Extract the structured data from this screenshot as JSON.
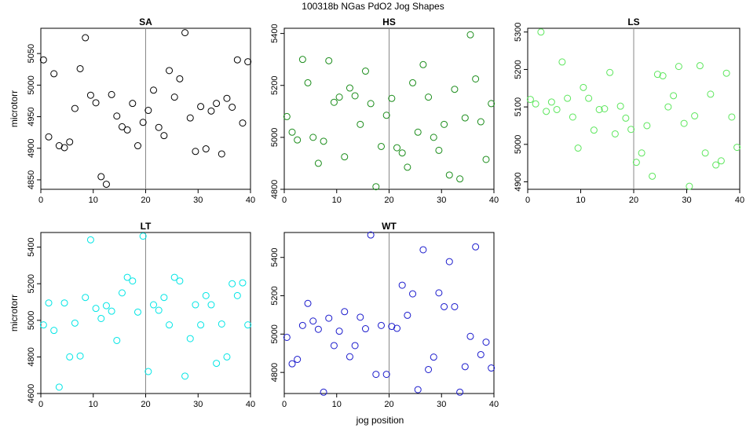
{
  "figure": {
    "title": "100318b   NGas PdO2 Jog Shapes",
    "xlabel": "jog position"
  },
  "chart_data": [
    {
      "type": "scatter",
      "title": "SA",
      "ylabel": "microtorr",
      "color": "#000000",
      "xlim": [
        0,
        40
      ],
      "ylim": [
        4835,
        5090
      ],
      "xticks": [
        0,
        10,
        20,
        30,
        40
      ],
      "yticks": [
        4850,
        4900,
        4950,
        5000,
        5050
      ],
      "vline": 20,
      "x": [
        0.5,
        1.5,
        2.5,
        3.5,
        4.5,
        5.5,
        6.5,
        7.5,
        8.5,
        9.5,
        10.5,
        11.5,
        12.5,
        13.5,
        14.5,
        15.5,
        16.5,
        17.5,
        18.5,
        19.5,
        20.5,
        21.5,
        22.5,
        23.5,
        24.5,
        25.5,
        26.5,
        27.5,
        28.5,
        29.5,
        30.5,
        31.5,
        32.5,
        33.5,
        34.5,
        35.5,
        36.5,
        37.5,
        38.5,
        39.5
      ],
      "y": [
        5040,
        4918,
        5018,
        4904,
        4901,
        4910,
        4963,
        5026,
        5075,
        4984,
        4972,
        4855,
        4843,
        4985,
        4951,
        4934,
        4929,
        4971,
        4904,
        4941,
        4960,
        4992,
        4933,
        4920,
        5023,
        4981,
        5010,
        5083,
        4948,
        4895,
        4966,
        4899,
        4959,
        4971,
        4891,
        4979,
        4965,
        5040,
        4940,
        5037
      ]
    },
    {
      "type": "scatter",
      "title": "HS",
      "ylabel": "",
      "color": "#1a8c1a",
      "xlim": [
        0,
        40
      ],
      "ylim": [
        4800,
        5420
      ],
      "xticks": [
        0,
        10,
        20,
        30,
        40
      ],
      "yticks": [
        4800,
        5000,
        5200,
        5400
      ],
      "vline": 20,
      "x": [
        0.5,
        1.5,
        2.5,
        3.5,
        4.5,
        5.5,
        6.5,
        7.5,
        8.5,
        9.5,
        10.5,
        11.5,
        12.5,
        13.5,
        14.5,
        15.5,
        16.5,
        17.5,
        18.5,
        19.5,
        20.5,
        21.5,
        22.5,
        23.5,
        24.5,
        25.5,
        26.5,
        27.5,
        28.5,
        29.5,
        30.5,
        31.5,
        32.5,
        33.5,
        34.5,
        35.5,
        36.5,
        37.5,
        38.5,
        39.5
      ],
      "y": [
        5080,
        5020,
        4990,
        5300,
        5210,
        5000,
        4900,
        4985,
        5295,
        5135,
        5155,
        4925,
        5190,
        5160,
        5050,
        5255,
        5130,
        4810,
        4965,
        5085,
        5150,
        4960,
        4940,
        4885,
        5210,
        5020,
        5280,
        5155,
        5000,
        4950,
        5050,
        4855,
        5185,
        4840,
        5075,
        5395,
        5225,
        5060,
        4915,
        5130
      ]
    },
    {
      "type": "scatter",
      "title": "LS",
      "ylabel": "",
      "color": "#5ce65c",
      "xlim": [
        0,
        40
      ],
      "ylim": [
        4880,
        5310
      ],
      "xticks": [
        0,
        10,
        20,
        30,
        40
      ],
      "yticks": [
        4900,
        5000,
        5100,
        5200,
        5300
      ],
      "vline": 20,
      "x": [
        0.5,
        1.5,
        2.5,
        3.5,
        4.5,
        5.5,
        6.5,
        7.5,
        8.5,
        9.5,
        10.5,
        11.5,
        12.5,
        13.5,
        14.5,
        15.5,
        16.5,
        17.5,
        18.5,
        19.5,
        20.5,
        21.5,
        22.5,
        23.5,
        24.5,
        25.5,
        26.5,
        27.5,
        28.5,
        29.5,
        30.5,
        31.5,
        32.5,
        33.5,
        34.5,
        35.5,
        36.5,
        37.5,
        38.5,
        39.5
      ],
      "y": [
        5120,
        5108,
        5300,
        5088,
        5113,
        5093,
        5220,
        5123,
        5073,
        4990,
        5152,
        5123,
        5038,
        5093,
        5095,
        5192,
        5028,
        5102,
        5070,
        5040,
        4952,
        4977,
        5050,
        4915,
        5187,
        5183,
        5100,
        5130,
        5208,
        5056,
        4888,
        5076,
        5210,
        4977,
        5134,
        4945,
        4956,
        5190,
        5073,
        4992
      ]
    },
    {
      "type": "scatter",
      "title": "LT",
      "ylabel": "microtorr",
      "color": "#00e5e5",
      "xlim": [
        0,
        40
      ],
      "ylim": [
        4600,
        5480
      ],
      "xticks": [
        0,
        10,
        20,
        30,
        40
      ],
      "yticks": [
        4600,
        4800,
        5000,
        5200,
        5400
      ],
      "vline": 20,
      "x": [
        0.5,
        1.5,
        2.5,
        3.5,
        4.5,
        5.5,
        6.5,
        7.5,
        8.5,
        9.5,
        10.5,
        11.5,
        12.5,
        13.5,
        14.5,
        15.5,
        16.5,
        17.5,
        18.5,
        19.5,
        20.5,
        21.5,
        22.5,
        23.5,
        24.5,
        25.5,
        26.5,
        27.5,
        28.5,
        29.5,
        30.5,
        31.5,
        32.5,
        33.5,
        34.5,
        35.5,
        36.5,
        37.5,
        38.5,
        39.5
      ],
      "y": [
        4975,
        5095,
        4945,
        4635,
        5095,
        4800,
        4985,
        4805,
        5125,
        5440,
        5065,
        5010,
        5080,
        5050,
        4890,
        5150,
        5235,
        5215,
        5045,
        5460,
        4720,
        5085,
        5055,
        5125,
        4975,
        5235,
        5215,
        4695,
        4900,
        5085,
        4975,
        5135,
        5085,
        4765,
        4980,
        4800,
        5200,
        5135,
        5205,
        4975
      ]
    },
    {
      "type": "scatter",
      "title": "WT",
      "ylabel": "",
      "color": "#1a1acc",
      "xlim": [
        0,
        40
      ],
      "ylim": [
        4690,
        5530
      ],
      "xticks": [
        0,
        10,
        20,
        30,
        40
      ],
      "yticks": [
        4800,
        5000,
        5200,
        5400
      ],
      "vline": 20,
      "x": [
        0.5,
        1.5,
        2.5,
        3.5,
        4.5,
        5.5,
        6.5,
        7.5,
        8.5,
        9.5,
        10.5,
        11.5,
        12.5,
        13.5,
        14.5,
        15.5,
        16.5,
        17.5,
        18.5,
        19.5,
        20.5,
        21.5,
        22.5,
        23.5,
        24.5,
        25.5,
        26.5,
        27.5,
        28.5,
        29.5,
        30.5,
        31.5,
        32.5,
        33.5,
        34.5,
        35.5,
        36.5,
        37.5,
        38.5,
        39.5
      ],
      "y": [
        4983,
        4845,
        4868,
        5045,
        5160,
        5068,
        5025,
        4697,
        5083,
        4940,
        5015,
        5117,
        4882,
        4940,
        5088,
        5028,
        5517,
        4790,
        5045,
        4790,
        5040,
        5030,
        5255,
        5098,
        5210,
        4710,
        5440,
        4815,
        4880,
        5215,
        5143,
        5378,
        5143,
        4697,
        4830,
        4988,
        5455,
        4893,
        4958,
        4823
      ]
    }
  ]
}
